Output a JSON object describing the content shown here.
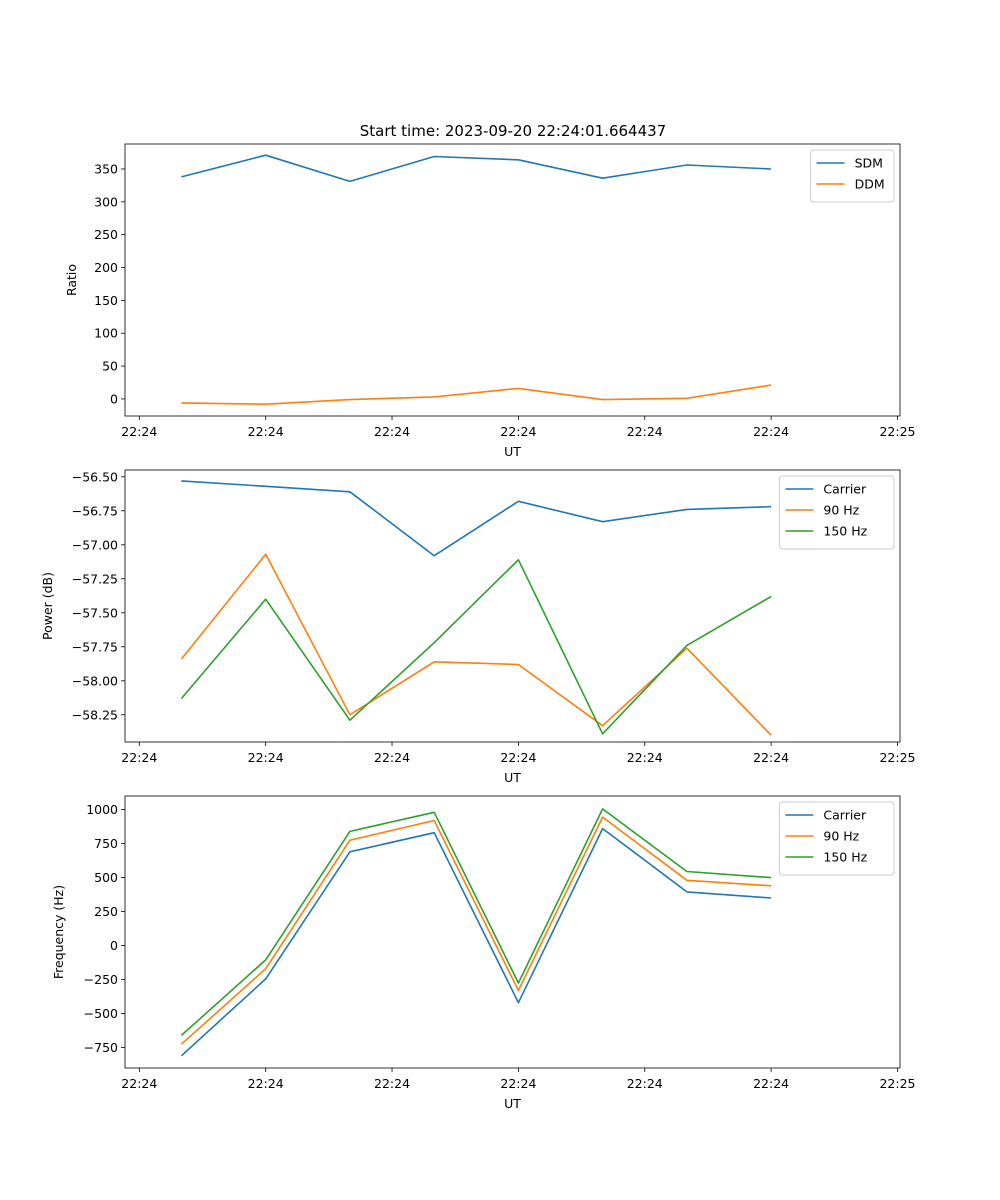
{
  "figure_title": "Start time: 2023-09-20 22:24:01.664437",
  "chart_data": [
    {
      "type": "line",
      "title": "Start time: 2023-09-20 22:24:01.664437",
      "xlabel": "UT",
      "ylabel": "Ratio",
      "x": [
        1,
        2,
        3,
        4,
        5,
        6,
        7,
        8
      ],
      "xlim": [
        0.33,
        9.53
      ],
      "xticks": [
        0.5,
        2,
        3.5,
        5,
        6.5,
        8,
        9.5
      ],
      "xtick_labels": [
        "22:24",
        "22:24",
        "22:24",
        "22:24",
        "22:24",
        "22:24",
        "22:25"
      ],
      "ylim": [
        -26,
        388
      ],
      "yticks": [
        0,
        50,
        100,
        150,
        200,
        250,
        300,
        350
      ],
      "ytick_labels": [
        "0",
        "50",
        "100",
        "150",
        "200",
        "250",
        "300",
        "350"
      ],
      "legend": "top-right",
      "series": [
        {
          "name": "SDM",
          "color": "#1f77b4",
          "values": [
            338,
            371,
            331,
            369,
            364,
            336,
            356,
            350
          ]
        },
        {
          "name": "DDM",
          "color": "#ff7f0e",
          "values": [
            -6,
            -8,
            -1,
            3,
            16,
            -1,
            1,
            21
          ]
        }
      ]
    },
    {
      "type": "line",
      "title": "",
      "xlabel": "UT",
      "ylabel": "Power (dB)",
      "x": [
        1,
        2,
        3,
        4,
        5,
        6,
        7,
        8
      ],
      "xlim": [
        0.33,
        9.53
      ],
      "xticks": [
        0.5,
        2,
        3.5,
        5,
        6.5,
        8,
        9.5
      ],
      "xtick_labels": [
        "22:24",
        "22:24",
        "22:24",
        "22:24",
        "22:24",
        "22:24",
        "22:25"
      ],
      "ylim": [
        -58.45,
        -56.45
      ],
      "yticks": [
        -58.25,
        -58.0,
        -57.75,
        -57.5,
        -57.25,
        -57.0,
        -56.75,
        -56.5
      ],
      "ytick_labels": [
        "−58.25",
        "−58.00",
        "−57.75",
        "−57.50",
        "−57.25",
        "−57.00",
        "−56.75",
        "−56.50"
      ],
      "legend": "top-right",
      "series": [
        {
          "name": "Carrier",
          "color": "#1f77b4",
          "values": [
            -56.53,
            -56.57,
            -56.61,
            -57.08,
            -56.68,
            -56.83,
            -56.74,
            -56.72
          ]
        },
        {
          "name": "90 Hz",
          "color": "#ff7f0e",
          "values": [
            -57.84,
            -57.07,
            -58.25,
            -57.86,
            -57.88,
            -58.33,
            -57.76,
            -58.4
          ]
        },
        {
          "name": "150 Hz",
          "color": "#2ca02c",
          "values": [
            -58.13,
            -57.4,
            -58.29,
            -57.72,
            -57.11,
            -58.39,
            -57.74,
            -57.38
          ]
        }
      ]
    },
    {
      "type": "line",
      "title": "",
      "xlabel": "UT",
      "ylabel": "Frequency (Hz)",
      "x": [
        1,
        2,
        3,
        4,
        5,
        6,
        7,
        8
      ],
      "xlim": [
        0.33,
        9.53
      ],
      "xticks": [
        0.5,
        2,
        3.5,
        5,
        6.5,
        8,
        9.5
      ],
      "xtick_labels": [
        "22:24",
        "22:24",
        "22:24",
        "22:24",
        "22:24",
        "22:24",
        "22:25"
      ],
      "ylim": [
        -900,
        1100
      ],
      "yticks": [
        -750,
        -500,
        -250,
        0,
        250,
        500,
        750,
        1000
      ],
      "ytick_labels": [
        "−750",
        "−500",
        "−250",
        "0",
        "250",
        "500",
        "750",
        "1000"
      ],
      "legend": "top-right",
      "series": [
        {
          "name": "Carrier",
          "color": "#1f77b4",
          "values": [
            -810,
            -245,
            690,
            830,
            -420,
            860,
            395,
            350
          ]
        },
        {
          "name": "90 Hz",
          "color": "#ff7f0e",
          "values": [
            -725,
            -170,
            775,
            920,
            -330,
            945,
            480,
            440
          ]
        },
        {
          "name": "150 Hz",
          "color": "#2ca02c",
          "values": [
            -660,
            -105,
            840,
            980,
            -275,
            1005,
            545,
            500
          ]
        }
      ]
    }
  ]
}
